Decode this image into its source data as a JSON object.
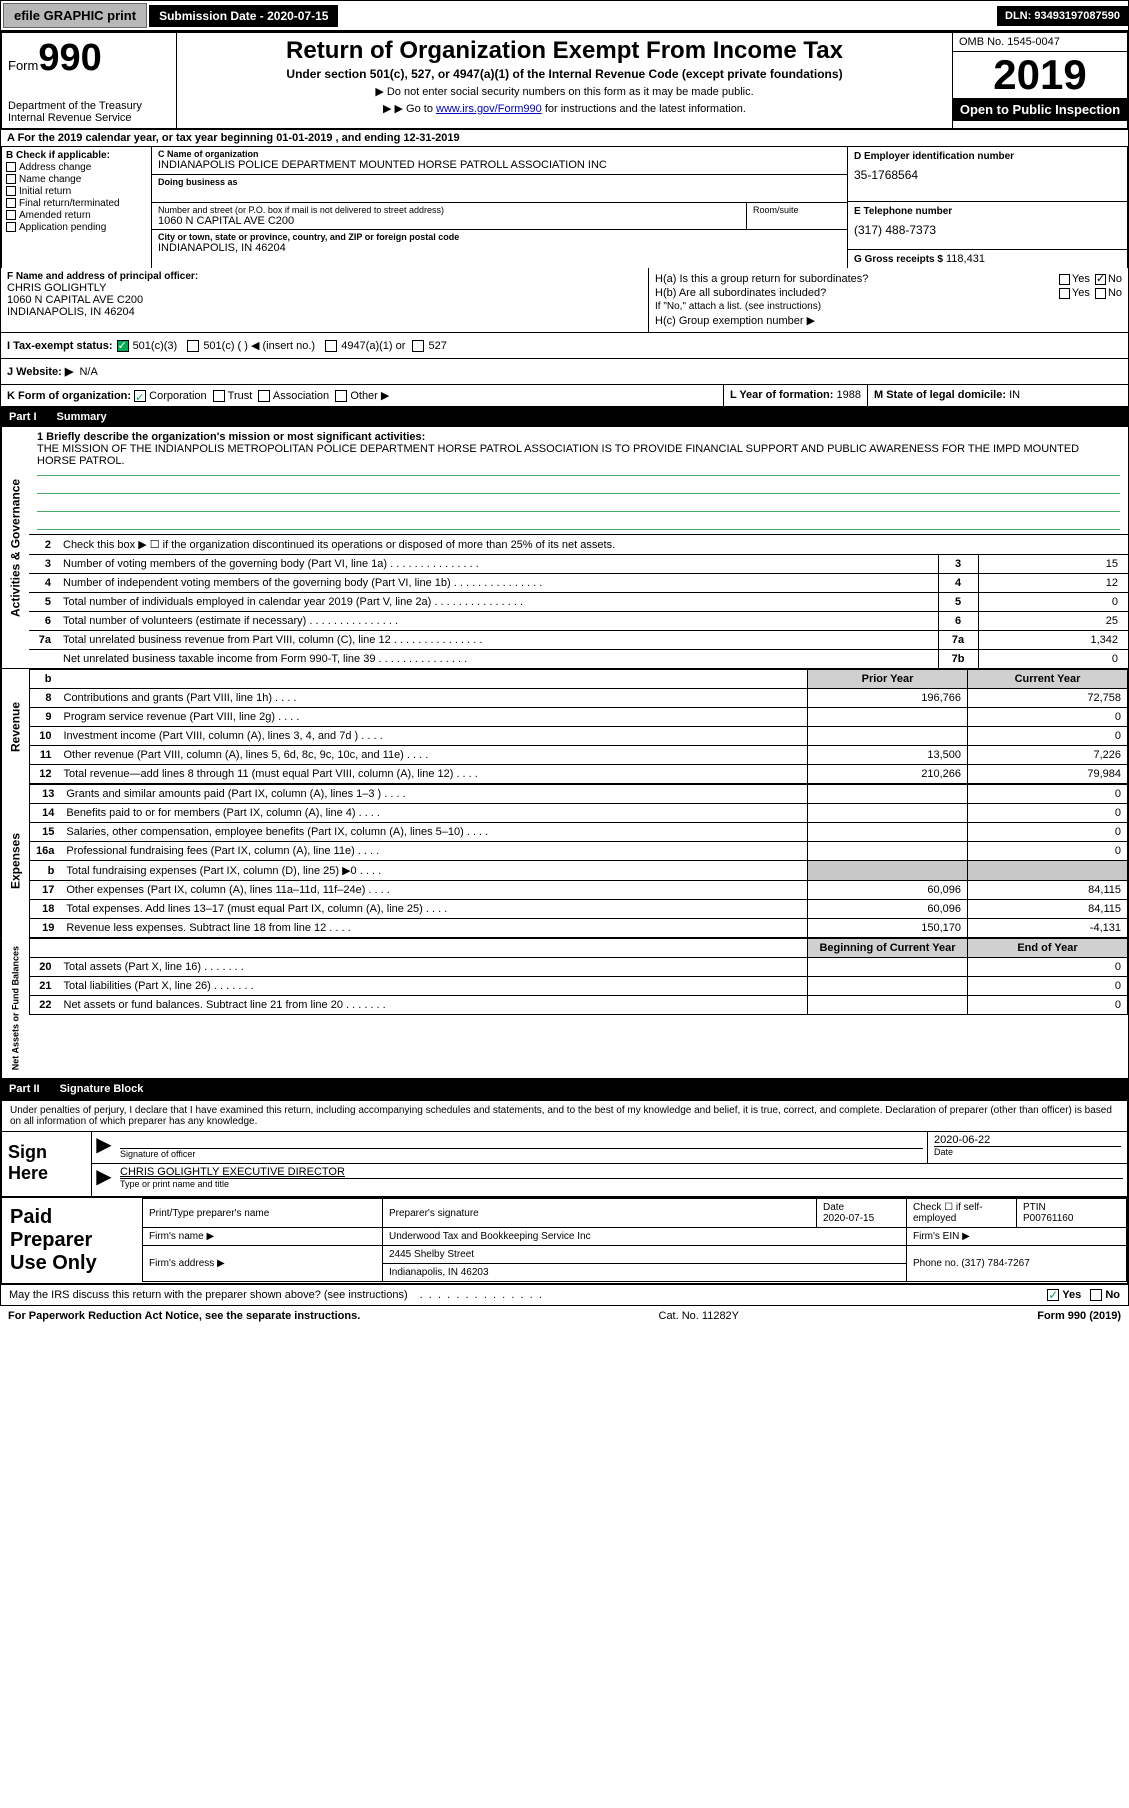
{
  "topbar": {
    "efile": "efile GRAPHIC print",
    "submission_label": "Submission Date - 2020-07-15",
    "dln": "DLN: 93493197087590"
  },
  "header": {
    "form_word": "Form",
    "form_number": "990",
    "dept": "Department of the Treasury\nInternal Revenue Service",
    "title": "Return of Organization Exempt From Income Tax",
    "sub1": "Under section 501(c), 527, or 4947(a)(1) of the Internal Revenue Code (except private foundations)",
    "sub2": "Do not enter social security numbers on this form as it may be made public.",
    "sub3_pre": "Go to ",
    "sub3_link": "www.irs.gov/Form990",
    "sub3_post": " for instructions and the latest information.",
    "omb": "OMB No. 1545-0047",
    "year": "2019",
    "open": "Open to Public Inspection"
  },
  "rowA": "A For the 2019 calendar year, or tax year beginning 01-01-2019    , and ending 12-31-2019",
  "colB": {
    "header": "B Check if applicable:",
    "items": [
      "Address change",
      "Name change",
      "Initial return",
      "Final return/terminated",
      "Amended return",
      "Application pending"
    ]
  },
  "colC": {
    "name_lbl": "C Name of organization",
    "name": "INDIANAPOLIS POLICE DEPARTMENT MOUNTED HORSE PATROLL ASSOCIATION INC",
    "dba_lbl": "Doing business as",
    "dba": "",
    "addr_lbl": "Number and street (or P.O. box if mail is not delivered to street address)",
    "addr": "1060 N CAPITAL AVE C200",
    "room_lbl": "Room/suite",
    "city_lbl": "City or town, state or province, country, and ZIP or foreign postal code",
    "city": "INDIANAPOLIS, IN  46204"
  },
  "colD": {
    "ein_lbl": "D Employer identification number",
    "ein": "35-1768564",
    "tel_lbl": "E Telephone number",
    "tel": "(317) 488-7373",
    "gross_lbl": "G Gross receipts $",
    "gross": "118,431"
  },
  "colF": {
    "lbl": "F  Name and address of principal officer:",
    "name": "CHRIS GOLIGHTLY",
    "addr1": "1060 N CAPITAL AVE C200",
    "addr2": "INDIANAPOLIS, IN  46204"
  },
  "colH": {
    "a": "H(a)  Is this a group return for subordinates?",
    "b": "H(b)  Are all subordinates included?",
    "b_note": "If \"No,\" attach a list. (see instructions)",
    "c": "H(c)  Group exemption number ▶",
    "yes": "Yes",
    "no": "No"
  },
  "rowI": {
    "lbl": "I  Tax-exempt status:",
    "opt1": "501(c)(3)",
    "opt2": "501(c) (  ) ◀ (insert no.)",
    "opt3": "4947(a)(1) or",
    "opt4": "527"
  },
  "rowJ": {
    "lbl": "J  Website: ▶",
    "val": "N/A"
  },
  "rowK": {
    "lbl": "K Form of organization:",
    "opts": [
      "Corporation",
      "Trust",
      "Association",
      "Other ▶"
    ]
  },
  "rowL": {
    "lbl": "L Year of formation:",
    "val": "1988"
  },
  "rowM": {
    "lbl": "M State of legal domicile:",
    "val": "IN"
  },
  "part1": {
    "num": "Part I",
    "title": "Summary"
  },
  "mission": {
    "lbl": "1  Briefly describe the organization's mission or most significant activities:",
    "text": "THE MISSION OF THE INDIANPOLIS METROPOLITAN POLICE DEPARTMENT HORSE PATROL ASSOCIATION IS TO PROVIDE FINANCIAL SUPPORT AND PUBLIC AWARENESS FOR THE IMPD MOUNTED HORSE PATROL."
  },
  "gov": {
    "label": "Activities & Governance",
    "line2": "Check this box ▶ ☐  if the organization discontinued its operations or disposed of more than 25% of its net assets.",
    "rows": [
      {
        "n": "3",
        "desc": "Number of voting members of the governing body (Part VI, line 1a)",
        "box": "3",
        "val": "15"
      },
      {
        "n": "4",
        "desc": "Number of independent voting members of the governing body (Part VI, line 1b)",
        "box": "4",
        "val": "12"
      },
      {
        "n": "5",
        "desc": "Total number of individuals employed in calendar year 2019 (Part V, line 2a)",
        "box": "5",
        "val": "0"
      },
      {
        "n": "6",
        "desc": "Total number of volunteers (estimate if necessary)",
        "box": "6",
        "val": "25"
      },
      {
        "n": "7a",
        "desc": "Total unrelated business revenue from Part VIII, column (C), line 12",
        "box": "7a",
        "val": "1,342"
      },
      {
        "n": "",
        "desc": "Net unrelated business taxable income from Form 990-T, line 39",
        "box": "7b",
        "val": "0"
      }
    ]
  },
  "fin_hdr": {
    "b": "b",
    "py": "Prior Year",
    "cy": "Current Year"
  },
  "revenue": {
    "label": "Revenue",
    "rows": [
      {
        "n": "8",
        "desc": "Contributions and grants (Part VIII, line 1h)",
        "py": "196,766",
        "cy": "72,758"
      },
      {
        "n": "9",
        "desc": "Program service revenue (Part VIII, line 2g)",
        "py": "",
        "cy": "0"
      },
      {
        "n": "10",
        "desc": "Investment income (Part VIII, column (A), lines 3, 4, and 7d )",
        "py": "",
        "cy": "0"
      },
      {
        "n": "11",
        "desc": "Other revenue (Part VIII, column (A), lines 5, 6d, 8c, 9c, 10c, and 11e)",
        "py": "13,500",
        "cy": "7,226"
      },
      {
        "n": "12",
        "desc": "Total revenue—add lines 8 through 11 (must equal Part VIII, column (A), line 12)",
        "py": "210,266",
        "cy": "79,984"
      }
    ]
  },
  "expenses": {
    "label": "Expenses",
    "rows": [
      {
        "n": "13",
        "desc": "Grants and similar amounts paid (Part IX, column (A), lines 1–3 )",
        "py": "",
        "cy": "0"
      },
      {
        "n": "14",
        "desc": "Benefits paid to or for members (Part IX, column (A), line 4)",
        "py": "",
        "cy": "0"
      },
      {
        "n": "15",
        "desc": "Salaries, other compensation, employee benefits (Part IX, column (A), lines 5–10)",
        "py": "",
        "cy": "0"
      },
      {
        "n": "16a",
        "desc": "Professional fundraising fees (Part IX, column (A), line 11e)",
        "py": "",
        "cy": "0"
      },
      {
        "n": "b",
        "desc": "Total fundraising expenses (Part IX, column (D), line 25) ▶0",
        "py": "grey",
        "cy": "grey"
      },
      {
        "n": "17",
        "desc": "Other expenses (Part IX, column (A), lines 11a–11d, 11f–24e)",
        "py": "60,096",
        "cy": "84,115"
      },
      {
        "n": "18",
        "desc": "Total expenses. Add lines 13–17 (must equal Part IX, column (A), line 25)",
        "py": "60,096",
        "cy": "84,115"
      },
      {
        "n": "19",
        "desc": "Revenue less expenses. Subtract line 18 from line 12",
        "py": "150,170",
        "cy": "-4,131"
      }
    ]
  },
  "net_hdr": {
    "py": "Beginning of Current Year",
    "cy": "End of Year"
  },
  "netassets": {
    "label": "Net Assets or Fund Balances",
    "rows": [
      {
        "n": "20",
        "desc": "Total assets (Part X, line 16)",
        "py": "",
        "cy": "0"
      },
      {
        "n": "21",
        "desc": "Total liabilities (Part X, line 26)",
        "py": "",
        "cy": "0"
      },
      {
        "n": "22",
        "desc": "Net assets or fund balances. Subtract line 21 from line 20",
        "py": "",
        "cy": "0"
      }
    ]
  },
  "part2": {
    "num": "Part II",
    "title": "Signature Block"
  },
  "sig": {
    "decl": "Under penalties of perjury, I declare that I have examined this return, including accompanying schedules and statements, and to the best of my knowledge and belief, it is true, correct, and complete. Declaration of preparer (other than officer) is based on all information of which preparer has any knowledge.",
    "sign_here": "Sign Here",
    "sig_lbl": "Signature of officer",
    "date": "2020-06-22",
    "date_lbl": "Date",
    "name": "CHRIS GOLIGHTLY  EXECUTIVE DIRECTOR",
    "name_lbl": "Type or print name and title"
  },
  "prep": {
    "label": "Paid Preparer Use Only",
    "h1": "Print/Type preparer's name",
    "h2": "Preparer's signature",
    "h3": "Date",
    "h4": "Check ☐  if self-employed",
    "h5": "PTIN",
    "date": "2020-07-15",
    "ptin": "P00761160",
    "firm_lbl": "Firm's name    ▶",
    "firm": "Underwood Tax and Bookkeeping Service Inc",
    "ein_lbl": "Firm's EIN ▶",
    "ein": "",
    "addr_lbl": "Firm's address ▶",
    "addr": "2445 Shelby Street",
    "city": "Indianapolis, IN  46203",
    "phone_lbl": "Phone no.",
    "phone": "(317) 784-7267"
  },
  "discuss": {
    "text": "May the IRS discuss this return with the preparer shown above? (see instructions)",
    "yes": "Yes",
    "no": "No"
  },
  "footer": {
    "left": "For Paperwork Reduction Act Notice, see the separate instructions.",
    "mid": "Cat. No. 11282Y",
    "right": "Form 990 (2019)"
  }
}
